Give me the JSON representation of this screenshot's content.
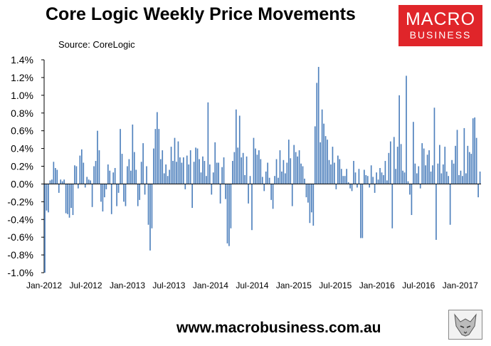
{
  "header": {
    "title": "Core Logic Weekly Price Movements",
    "source": "Source: CoreLogic"
  },
  "logo": {
    "line1": "MACRO",
    "line2": "BUSINESS"
  },
  "footer": {
    "url": "www.macrobusiness.com.au"
  },
  "colors": {
    "bar": "#4f81bd",
    "axis": "#000000",
    "logo_bg": "#e0252a"
  },
  "chart_data": {
    "type": "bar",
    "title": "Core Logic Weekly Price Movements",
    "source": "Source: CoreLogic",
    "xlabel": "",
    "ylabel": "",
    "ylim": [
      -1.0,
      1.4
    ],
    "y_ticks": [
      "1.4%",
      "1.2%",
      "1.0%",
      "0.8%",
      "0.6%",
      "0.4%",
      "0.2%",
      "0.0%",
      "-0.2%",
      "-0.4%",
      "-0.6%",
      "-0.8%",
      "-1.0%"
    ],
    "x_ticks": [
      "Jan-2012",
      "Jul-2012",
      "Jan-2013",
      "Jul-2013",
      "Jan-2014",
      "Jul-2014",
      "Jan-2015",
      "Jul-2015",
      "Jan-2016",
      "Jul-2016",
      "Jan-2017"
    ],
    "x_range": [
      "2012-01",
      "2017-04"
    ],
    "grid": false,
    "legend": "none",
    "series": [
      {
        "values": [
          -1.0,
          -0.3,
          -0.32,
          0.04,
          0.05,
          0.25,
          0.18,
          0.16,
          -0.1,
          0.05,
          0.03,
          0.05,
          -0.33,
          -0.34,
          -0.38,
          -0.27,
          -0.35,
          0.21,
          0.2,
          -0.05,
          0.32,
          0.39,
          0.24,
          -0.04,
          0.08,
          0.05,
          0.04,
          -0.26,
          0.2,
          0.26,
          0.6,
          0.38,
          -0.2,
          -0.31,
          -0.15,
          -0.06,
          0.22,
          0.15,
          -0.34,
          0.13,
          0.18,
          -0.25,
          -0.1,
          0.62,
          0.34,
          -0.2,
          -0.25,
          0.2,
          0.28,
          0.15,
          0.67,
          0.36,
          0.16,
          -0.25,
          -0.18,
          0.25,
          0.46,
          -0.12,
          0.2,
          -0.46,
          -0.75,
          -0.5,
          0.4,
          0.62,
          0.81,
          0.62,
          0.28,
          0.38,
          0.12,
          0.22,
          0.09,
          0.16,
          0.42,
          0.26,
          0.52,
          0.25,
          0.48,
          0.3,
          0.24,
          0.3,
          -0.06,
          0.32,
          0.22,
          0.38,
          -0.27,
          0.25,
          0.41,
          0.4,
          0.28,
          0.13,
          0.31,
          0.26,
          0.09,
          0.92,
          0.22,
          -0.12,
          0.13,
          0.47,
          0.24,
          0.24,
          -0.22,
          0.19,
          0.3,
          -0.17,
          -0.67,
          -0.7,
          -0.5,
          0.26,
          0.36,
          0.84,
          0.41,
          0.77,
          0.3,
          0.35,
          0.1,
          0.31,
          -0.22,
          0.09,
          -0.52,
          0.52,
          0.4,
          0.33,
          0.38,
          0.28,
          0.08,
          -0.08,
          0.14,
          0.24,
          0.07,
          -0.18,
          -0.28,
          0.09,
          0.28,
          0.07,
          0.38,
          0.14,
          0.27,
          0.12,
          0.24,
          0.5,
          0.29,
          -0.25,
          0.44,
          0.36,
          0.31,
          0.38,
          0.23,
          0.2,
          0.06,
          -0.15,
          -0.21,
          -0.44,
          -0.32,
          -0.47,
          0.65,
          1.14,
          1.32,
          0.47,
          0.84,
          0.68,
          0.54,
          0.5,
          0.27,
          0.22,
          0.42,
          0.24,
          -0.06,
          0.32,
          0.28,
          0.17,
          0.09,
          0.09,
          0.17,
          0.02,
          -0.05,
          -0.08,
          0.26,
          0.13,
          -0.04,
          0.17,
          -0.61,
          -0.61,
          0.16,
          0.1,
          0.09,
          -0.04,
          0.21,
          0.08,
          -0.1,
          0.13,
          0.05,
          0.18,
          0.13,
          0.1,
          0.26,
          0.04,
          0.35,
          0.48,
          -0.5,
          0.53,
          0.17,
          0.42,
          1.0,
          0.45,
          0.15,
          0.13,
          1.22,
          0.03,
          -0.12,
          -0.35,
          0.7,
          0.23,
          0.12,
          0.2,
          -0.05,
          0.46,
          0.4,
          0.21,
          0.33,
          0.38,
          0.14,
          0.21,
          0.86,
          -0.63,
          0.23,
          0.44,
          0.12,
          0.22,
          0.42,
          0.14,
          0.09,
          -0.46,
          0.27,
          0.23,
          0.43,
          0.61,
          0.1,
          0.15,
          0.09,
          0.63,
          0.12,
          0.43,
          0.36,
          0.34,
          0.74,
          0.75,
          0.52,
          -0.15,
          0.14
        ]
      }
    ]
  }
}
